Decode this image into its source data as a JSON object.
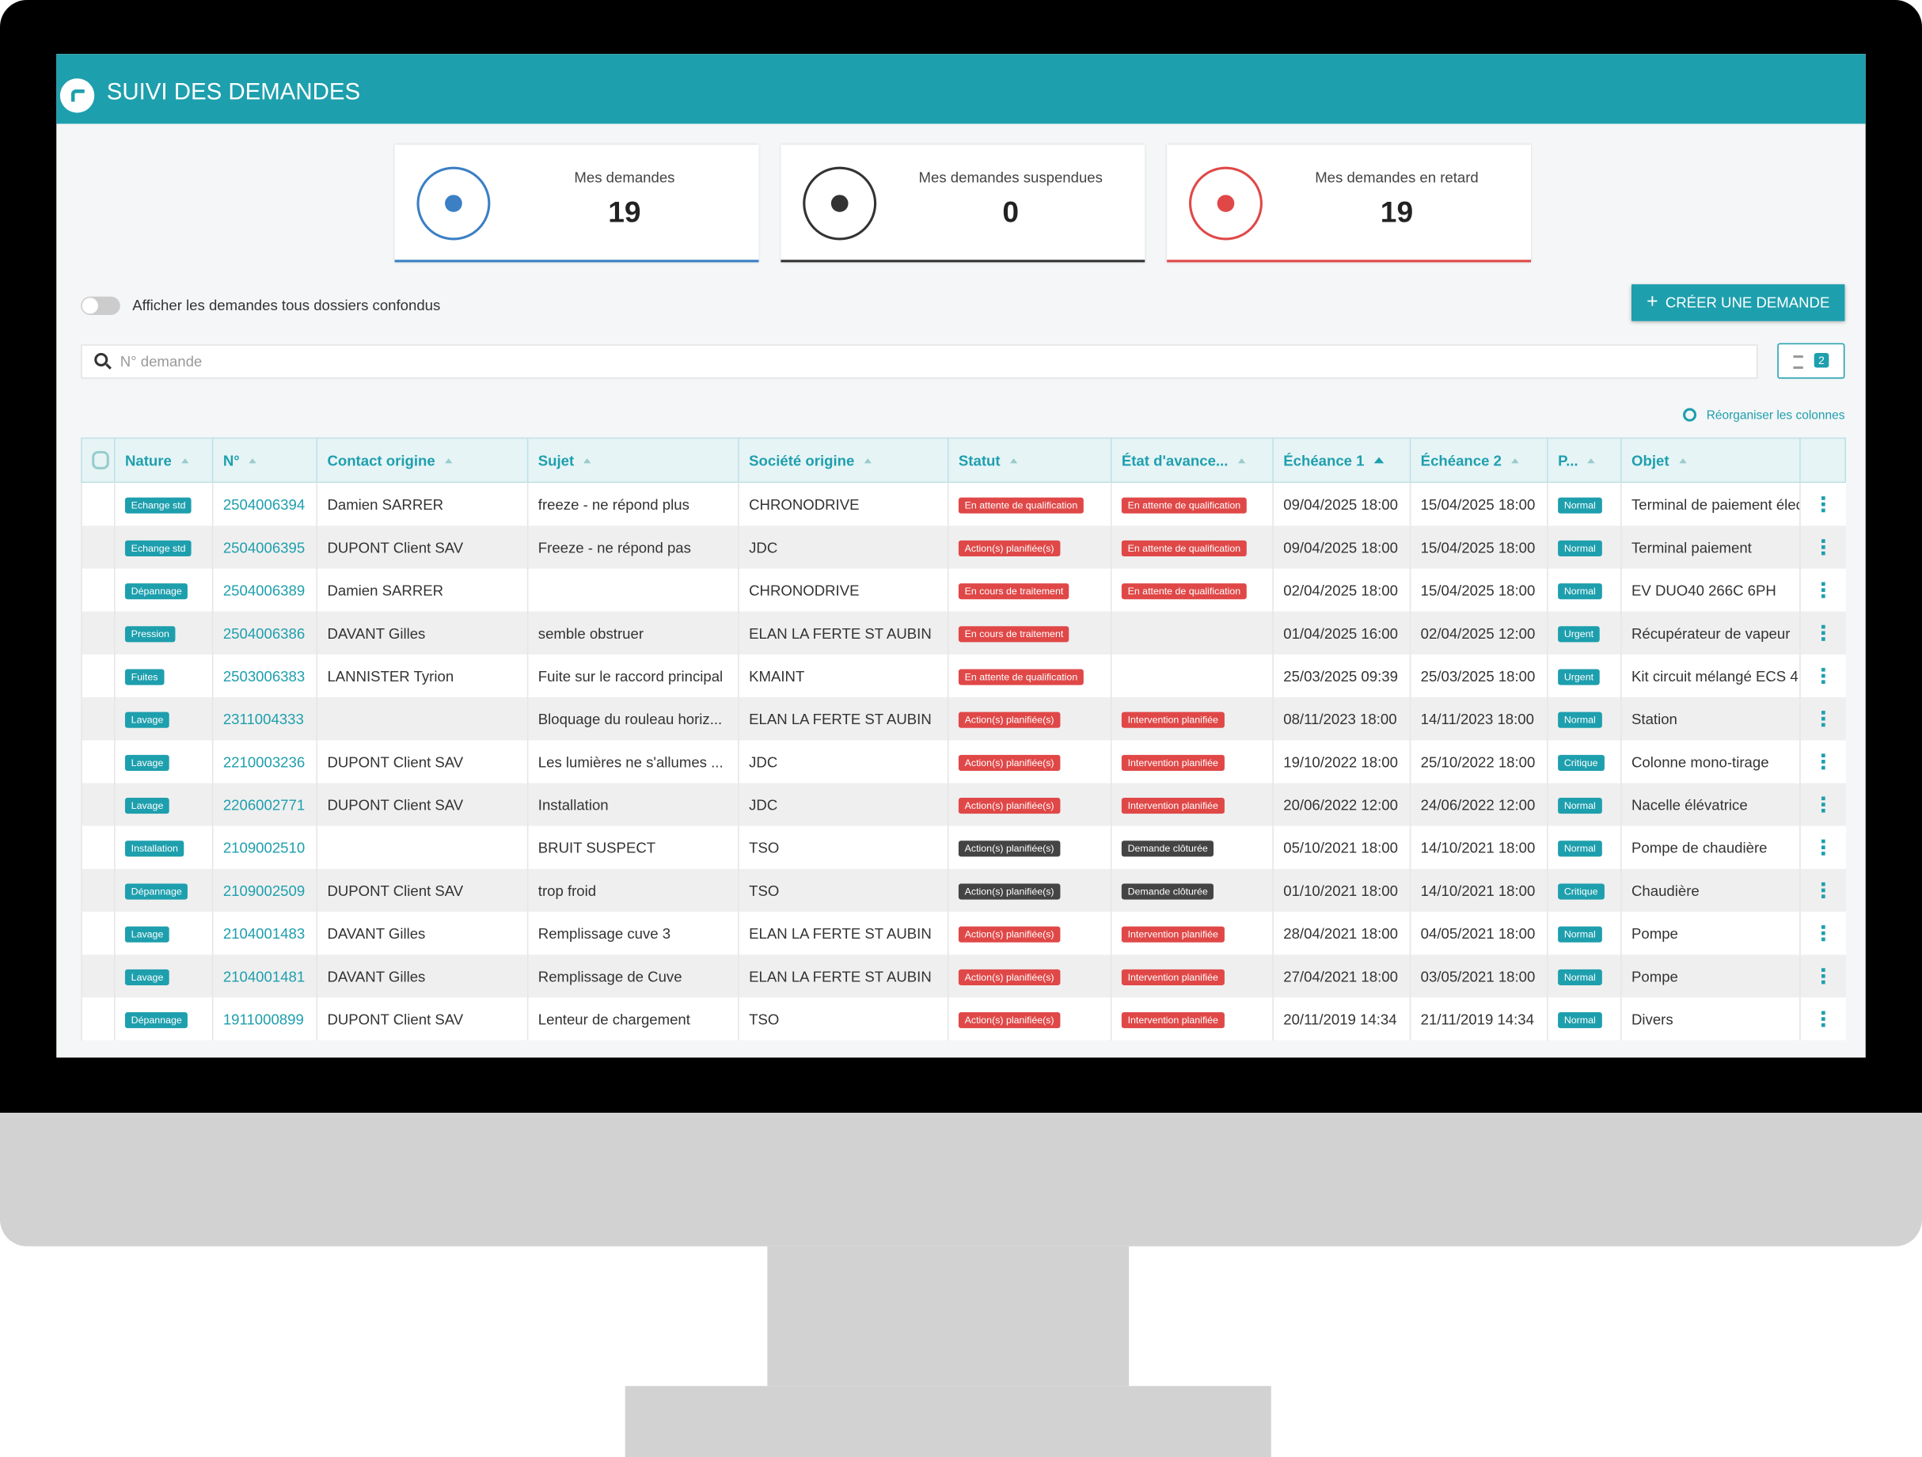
{
  "header": {
    "title": "SUIVI DES DEMANDES"
  },
  "cards": [
    {
      "label": "Mes demandes",
      "value": 19,
      "color": "#3b7fc4"
    },
    {
      "label": "Mes demandes suspendues",
      "value": 0,
      "color": "#333333"
    },
    {
      "label": "Mes demandes en retard",
      "value": 19,
      "color": "#e04848"
    }
  ],
  "toolbar": {
    "toggle_label": "Afficher les demandes tous dossiers confondus",
    "create_button": "CRÉER UNE DEMANDE",
    "search_placeholder": "N° demande",
    "filter_count": 2,
    "reorganize": "Réorganiser les colonnes"
  },
  "table": {
    "columns": [
      "Nature",
      "N°",
      "Contact origine",
      "Sujet",
      "Société origine",
      "Statut",
      "État d'avance...",
      "Échéance 1",
      "Échéance 2",
      "P...",
      "Objet"
    ],
    "sorted_column": 7,
    "rows": [
      {
        "nature": "Echange std",
        "numero": "2504006394",
        "contact": "Damien SARRER",
        "sujet": "freeze - ne répond plus",
        "societe": "CHRONODRIVE",
        "statut": "En attente de qualification",
        "statut_color": "#e04848",
        "etat": "En attente de qualification",
        "etat_color": "#e04848",
        "echeance1": "09/04/2025 18:00",
        "echeance2": "15/04/2025 18:00",
        "priorite": "Normal",
        "objet": "Terminal de paiement élec"
      },
      {
        "nature": "Echange std",
        "numero": "2504006395",
        "contact": "DUPONT Client SAV",
        "sujet": "Freeze - ne répond pas",
        "societe": "JDC",
        "statut": "Action(s) planifiée(s)",
        "statut_color": "#e04848",
        "etat": "En attente de qualification",
        "etat_color": "#e04848",
        "echeance1": "09/04/2025 18:00",
        "echeance2": "15/04/2025 18:00",
        "priorite": "Normal",
        "objet": "Terminal paiement"
      },
      {
        "nature": "Dépannage",
        "numero": "2504006389",
        "contact": "Damien SARRER",
        "sujet": null,
        "societe": "CHRONODRIVE",
        "statut": "En cours de traitement",
        "statut_color": "#e04848",
        "etat": "En attente de qualification",
        "etat_color": "#e04848",
        "echeance1": "02/04/2025 18:00",
        "echeance2": "15/04/2025 18:00",
        "priorite": "Normal",
        "objet": "EV DUO40 266C 6PH"
      },
      {
        "nature": "Pression",
        "numero": "2504006386",
        "contact": "DAVANT Gilles",
        "sujet": "semble obstruer",
        "societe": "ELAN LA FERTE ST AUBIN",
        "statut": "En cours de traitement",
        "statut_color": "#e04848",
        "etat": null,
        "etat_color": null,
        "echeance1": "01/04/2025 16:00",
        "echeance2": "02/04/2025 12:00",
        "priorite": "Urgent",
        "objet": "Récupérateur de vapeur"
      },
      {
        "nature": "Fuites",
        "numero": "2503006383",
        "contact": "LANNISTER Tyrion",
        "sujet": "Fuite sur le raccord principal",
        "societe": "KMAINT",
        "statut": "En attente de qualification",
        "statut_color": "#e04848",
        "etat": null,
        "etat_color": null,
        "echeance1": "25/03/2025 09:39",
        "echeance2": "25/03/2025 18:00",
        "priorite": "Urgent",
        "objet": "Kit circuit mélangé ECS 4"
      },
      {
        "nature": "Lavage",
        "numero": "2311004333",
        "contact": null,
        "sujet": "Bloquage du rouleau horiz...",
        "societe": "ELAN LA FERTE ST AUBIN",
        "statut": "Action(s) planifiée(s)",
        "statut_color": "#e04848",
        "etat": "Intervention planifiée",
        "etat_color": "#e04848",
        "echeance1": "08/11/2023 18:00",
        "echeance2": "14/11/2023 18:00",
        "priorite": "Normal",
        "objet": "Station"
      },
      {
        "nature": "Lavage",
        "numero": "2210003236",
        "contact": "DUPONT Client SAV",
        "sujet": "Les lumières ne s'allumes ...",
        "societe": "JDC",
        "statut": "Action(s) planifiée(s)",
        "statut_color": "#e04848",
        "etat": "Intervention planifiée",
        "etat_color": "#e04848",
        "echeance1": "19/10/2022 18:00",
        "echeance2": "25/10/2022 18:00",
        "priorite": "Critique",
        "objet": "Colonne mono-tirage"
      },
      {
        "nature": "Lavage",
        "numero": "2206002771",
        "contact": "DUPONT Client SAV",
        "sujet": "Installation",
        "societe": "JDC",
        "statut": "Action(s) planifiée(s)",
        "statut_color": "#e04848",
        "etat": "Intervention planifiée",
        "etat_color": "#e04848",
        "echeance1": "20/06/2022 12:00",
        "echeance2": "24/06/2022 12:00",
        "priorite": "Normal",
        "objet": "Nacelle élévatrice"
      },
      {
        "nature": "Installation",
        "numero": "2109002510",
        "contact": null,
        "sujet": "BRUIT SUSPECT",
        "societe": "TSO",
        "statut": "Action(s) planifiée(s)",
        "statut_color": "#444444",
        "etat": "Demande clôturée",
        "etat_color": "#444444",
        "echeance1": "05/10/2021 18:00",
        "echeance2": "14/10/2021 18:00",
        "priorite": "Normal",
        "objet": "Pompe de chaudière"
      },
      {
        "nature": "Dépannage",
        "numero": "2109002509",
        "contact": "DUPONT Client SAV",
        "sujet": "trop froid",
        "societe": "TSO",
        "statut": "Action(s) planifiée(s)",
        "statut_color": "#444444",
        "etat": "Demande clôturée",
        "etat_color": "#444444",
        "echeance1": "01/10/2021 18:00",
        "echeance2": "14/10/2021 18:00",
        "priorite": "Critique",
        "objet": "Chaudière"
      },
      {
        "nature": "Lavage",
        "numero": "2104001483",
        "contact": "DAVANT Gilles",
        "sujet": "Remplissage cuve 3",
        "societe": "ELAN LA FERTE ST AUBIN",
        "statut": "Action(s) planifiée(s)",
        "statut_color": "#e04848",
        "etat": "Intervention planifiée",
        "etat_color": "#e04848",
        "echeance1": "28/04/2021 18:00",
        "echeance2": "04/05/2021 18:00",
        "priorite": "Normal",
        "objet": "Pompe"
      },
      {
        "nature": "Lavage",
        "numero": "2104001481",
        "contact": "DAVANT Gilles",
        "sujet": "Remplissage de Cuve",
        "societe": "ELAN LA FERTE ST AUBIN",
        "statut": "Action(s) planifiée(s)",
        "statut_color": "#e04848",
        "etat": "Intervention planifiée",
        "etat_color": "#e04848",
        "echeance1": "27/04/2021 18:00",
        "echeance2": "03/05/2021 18:00",
        "priorite": "Normal",
        "objet": "Pompe"
      },
      {
        "nature": "Dépannage",
        "numero": "1911000899",
        "contact": "DUPONT Client SAV",
        "sujet": "Lenteur de chargement",
        "societe": "TSO",
        "statut": "Action(s) planifiée(s)",
        "statut_color": "#e04848",
        "etat": "Intervention planifiée",
        "etat_color": "#e04848",
        "echeance1": "20/11/2019 14:34",
        "echeance2": "21/11/2019 14:34",
        "priorite": "Normal",
        "objet": "Divers"
      }
    ]
  }
}
